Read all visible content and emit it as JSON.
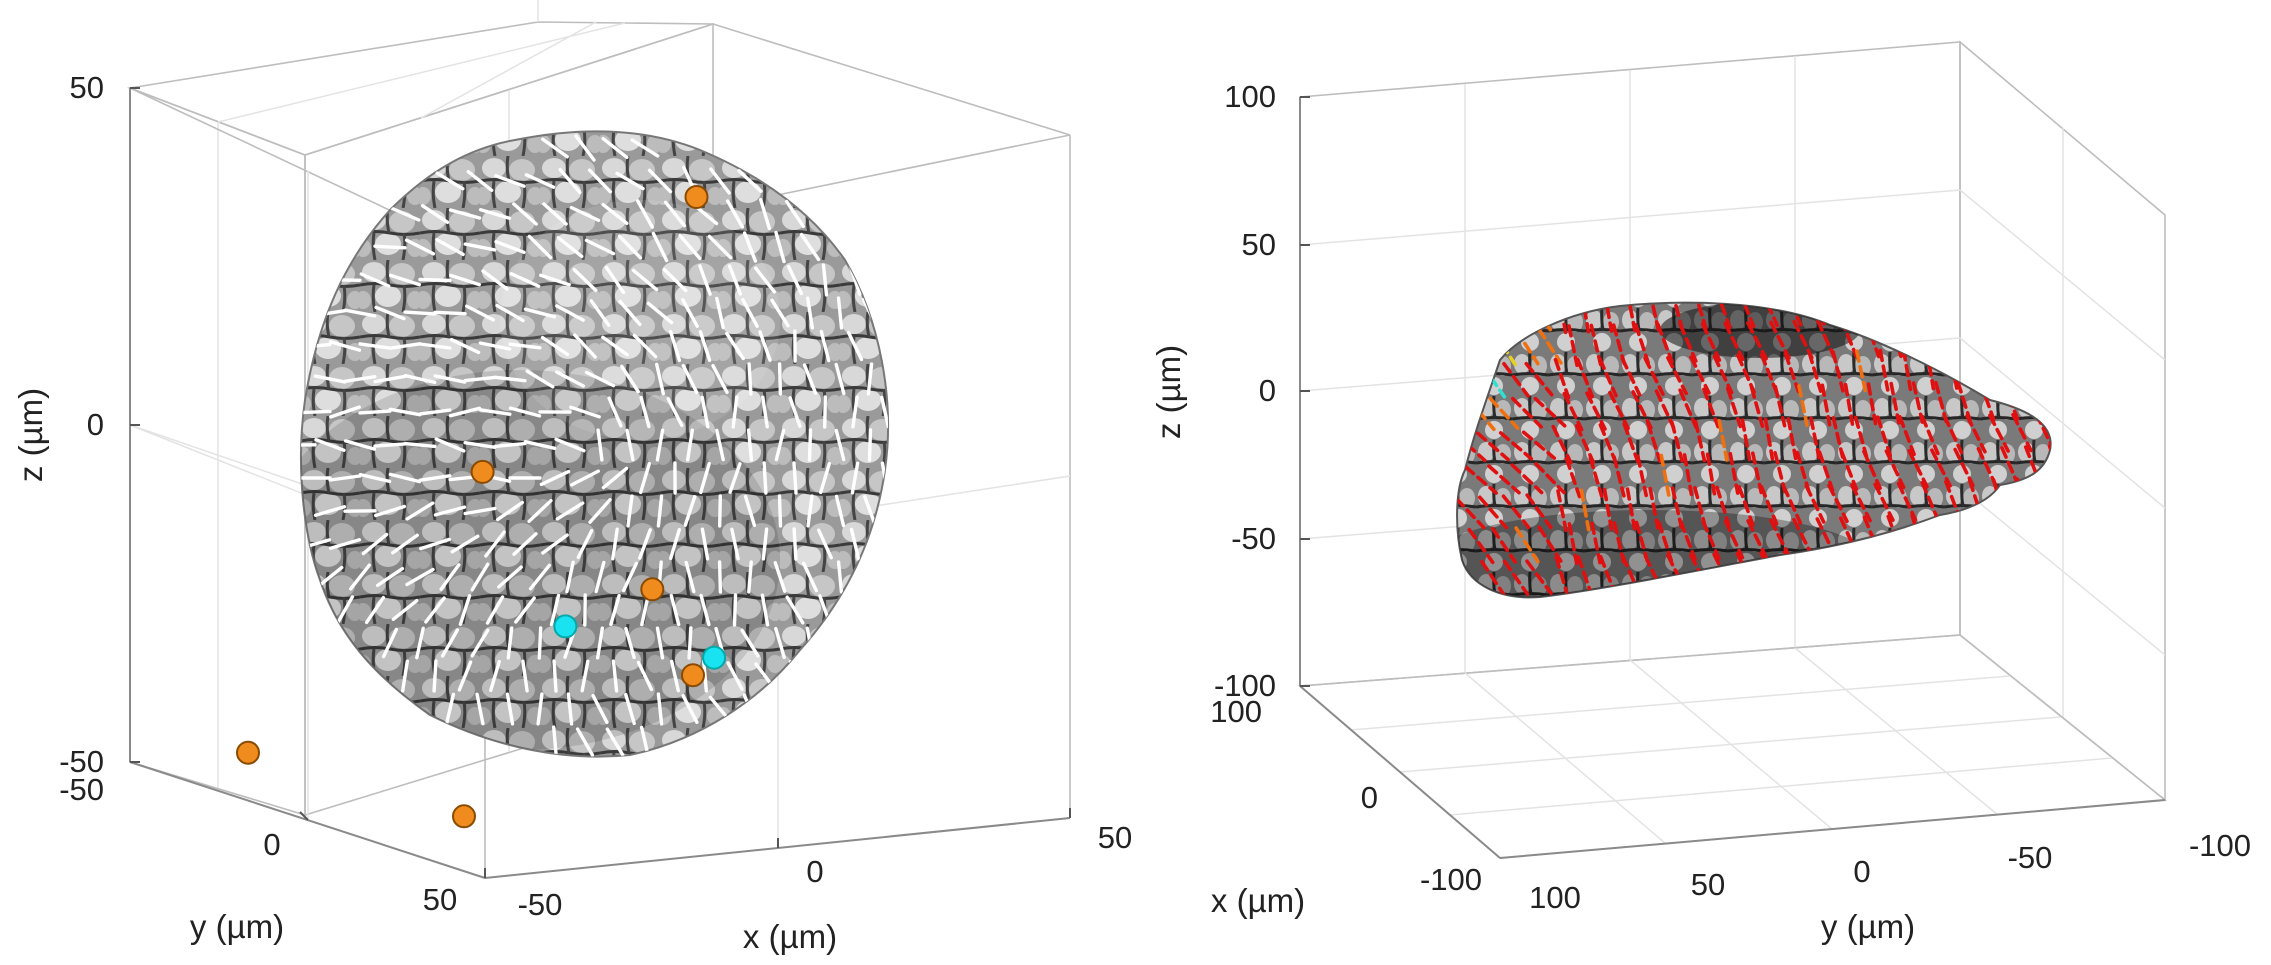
{
  "chart_data": [
    {
      "type": "scatter",
      "panel": "left",
      "title": "",
      "xlabel": "x (µm)",
      "ylabel": "y (µm)",
      "zlabel": "z (µm)",
      "xticks": [
        "-50",
        "0",
        "50"
      ],
      "yticks": [
        "-50",
        "0",
        "50"
      ],
      "zticks": [
        "-50",
        "0",
        "50"
      ],
      "xlim": [
        -50,
        50
      ],
      "ylim": [
        -50,
        50
      ],
      "zlim": [
        -50,
        50
      ],
      "grid": true,
      "surface": "grayscale textured sphere with white nematic director lines",
      "director_color": "#ffffff",
      "series": [
        {
          "marker_color": "#f08c1e",
          "points": [
            {
              "x": 8,
              "y": -14,
              "z": 33
            },
            {
              "x": -14,
              "y": 10,
              "z": 2
            },
            {
              "x": 15,
              "y": 10,
              "z": -18
            },
            {
              "x": 25,
              "y": 15,
              "z": -30
            },
            {
              "x": -45,
              "y": 25,
              "z": -32
            },
            {
              "x": -2,
              "y": 35,
              "z": -42
            }
          ]
        },
        {
          "marker_color": "#19e3f0",
          "points": [
            {
              "x": 5,
              "y": 18,
              "z": -20
            },
            {
              "x": 28,
              "y": 14,
              "z": -28
            }
          ]
        }
      ]
    },
    {
      "type": "scatter",
      "panel": "right",
      "title": "",
      "xlabel": "x (µm)",
      "ylabel": "y (µm)",
      "zlabel": "z (µm)",
      "xticks": [
        "-100",
        "0",
        "100"
      ],
      "yticks": [
        "100",
        "50",
        "0",
        "-50",
        "-100"
      ],
      "zticks": [
        "-100",
        "-50",
        "0",
        "50",
        "100"
      ],
      "xlim": [
        -100,
        100
      ],
      "ylim": [
        -100,
        100
      ],
      "zlim": [
        -100,
        100
      ],
      "grid": true,
      "surface": "grayscale textured elongated tissue with colored dashed director lines",
      "director_colors": [
        "#e01010",
        "#f07010",
        "#e8d020",
        "#30e0d0"
      ]
    }
  ]
}
